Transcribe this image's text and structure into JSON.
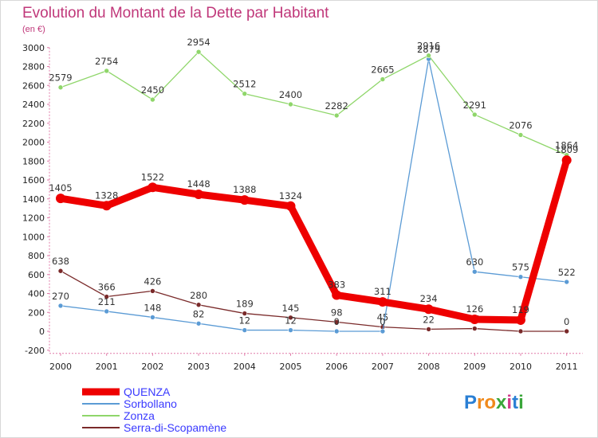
{
  "title": "Evolution du Montant de la Dette par Habitant",
  "subtitle": "(en €)",
  "logo": {
    "letters": [
      "P",
      "r",
      "o",
      "x",
      "i",
      "t",
      "i"
    ],
    "colors": [
      "#2a7fd4",
      "#f08a1c",
      "#f08a1c",
      "#3aa63a",
      "#d23a8a",
      "#2a7fd4",
      "#3aa63a"
    ]
  },
  "chart_data": {
    "type": "line",
    "title": "Evolution du Montant de la Dette par Habitant",
    "ylabel": "(en €)",
    "x": [
      "2000",
      "2001",
      "2002",
      "2003",
      "2004",
      "2005",
      "2006",
      "2007",
      "2008",
      "2009",
      "2010",
      "2011"
    ],
    "ylim": [
      -200,
      3000
    ],
    "yticks": [
      "-200",
      "0",
      "200",
      "400",
      "600",
      "800",
      "1000",
      "1200",
      "1400",
      "1600",
      "1800",
      "2000",
      "2200",
      "2400",
      "2600",
      "2800",
      "3000"
    ],
    "grid": false,
    "legend_position": "bottom-left",
    "series": [
      {
        "name": "QUENZA",
        "color": "#ee0000",
        "width": 9,
        "marker": 6,
        "values": [
          1405,
          1328,
          1522,
          1448,
          1388,
          1324,
          383,
          311,
          234,
          126,
          119,
          1809
        ],
        "labels": [
          "1405",
          "1328",
          "1522",
          "1448",
          "1388",
          "1324",
          "383",
          "311",
          "234",
          "126",
          "119",
          "1809"
        ]
      },
      {
        "name": "Sorbollano",
        "color": "#5b9bd5",
        "width": 1.3,
        "marker": 3,
        "values": [
          270,
          211,
          148,
          82,
          12,
          12,
          0,
          0,
          2879,
          630,
          575,
          522
        ],
        "labels": [
          "270",
          "211",
          "148",
          "82",
          "12",
          "12",
          "0",
          "0",
          "2879",
          "630",
          "575",
          "522"
        ]
      },
      {
        "name": "Zonza",
        "color": "#8fd66a",
        "width": 1.3,
        "marker": 3,
        "values": [
          2579,
          2754,
          2450,
          2954,
          2512,
          2400,
          2282,
          2665,
          2916,
          2291,
          2076,
          1864
        ],
        "labels": [
          "2579",
          "2754",
          "2450",
          "2954",
          "2512",
          "2400",
          "2282",
          "2665",
          "2916",
          "2291",
          "2076",
          "1864"
        ]
      },
      {
        "name": "Serra-di-Scopamène",
        "color": "#7a2a2a",
        "width": 1.3,
        "marker": 3,
        "values": [
          638,
          366,
          426,
          280,
          189,
          145,
          98,
          45,
          22,
          29,
          0,
          0
        ],
        "labels": [
          "638",
          "366",
          "426",
          "280",
          "189",
          "145",
          "98",
          "45",
          "22",
          "29",
          "0",
          "0"
        ]
      }
    ]
  }
}
